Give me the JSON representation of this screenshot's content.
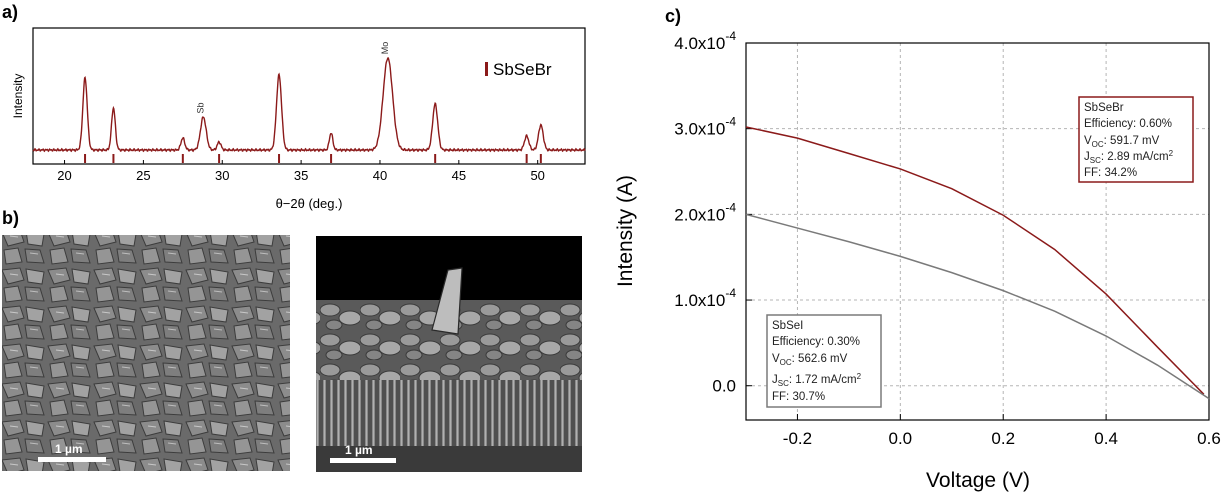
{
  "panel_labels": {
    "a": "a)",
    "b": "b)",
    "c": "c)"
  },
  "xrd": {
    "xlabel": "θ−2θ (deg.)",
    "ylabel": "Intensity",
    "legend": "SbSeBr",
    "xlim": [
      18,
      53
    ],
    "x_ticks": [
      "20",
      "25",
      "30",
      "35",
      "40",
      "45",
      "50"
    ],
    "peak_labels": [
      {
        "text": "Sb",
        "x": 28.8
      },
      {
        "text": "Mo",
        "x": 40.5
      }
    ],
    "reference_peaks": [
      21.3,
      23.1,
      27.5,
      29.8,
      33.6,
      36.9,
      43.5,
      49.3,
      50.2
    ],
    "color": "#8b1a1a"
  },
  "sem": {
    "top_view": {
      "scale_bar": "1 µm"
    },
    "cross_section": {
      "scale_bar": "1 µm"
    }
  },
  "chart_data": {
    "type": "line",
    "xlabel": "Voltage (V)",
    "ylabel": "Intensity (A)",
    "xlim": [
      -0.3,
      0.6
    ],
    "ylim": [
      -4e-05,
      0.0004
    ],
    "x_ticks": [
      "-0.2",
      "0.0",
      "0.2",
      "0.4",
      "0.6"
    ],
    "y_ticks": [
      {
        "mantissa": "0.0",
        "exp": ""
      },
      {
        "mantissa": "1.0x10",
        "exp": "-4"
      },
      {
        "mantissa": "2.0x10",
        "exp": "-4"
      },
      {
        "mantissa": "3.0x10",
        "exp": "-4"
      },
      {
        "mantissa": "4.0x10",
        "exp": "-4"
      }
    ],
    "grid": true,
    "series": [
      {
        "name": "SbSeBr",
        "color": "#8b1a1a",
        "x": [
          -0.3,
          -0.2,
          -0.1,
          0.0,
          0.1,
          0.2,
          0.3,
          0.4,
          0.5,
          0.59
        ],
        "y": [
          0.000302,
          0.000289,
          0.000271,
          0.000253,
          0.00023,
          0.000199,
          0.000159,
          0.000107,
          4.5e-05,
          -1e-05
        ]
      },
      {
        "name": "SbSeI",
        "color": "#7a7a7a",
        "x": [
          -0.3,
          -0.2,
          -0.1,
          0.0,
          0.1,
          0.2,
          0.3,
          0.4,
          0.5,
          0.6
        ],
        "y": [
          0.0002,
          0.000184,
          0.000168,
          0.000151,
          0.000132,
          0.000111,
          8.7e-05,
          5.8e-05,
          2.4e-05,
          -1.5e-05
        ]
      }
    ],
    "annotations": [
      {
        "series": "SbSeBr",
        "title": "SbSeBr",
        "efficiency": "Efficiency: 0.60%",
        "voc_prefix": "V",
        "voc_sub": "OC",
        "voc_value": ": 591.7 mV",
        "jsc_prefix": "J",
        "jsc_sub": "SC",
        "jsc_value": ": 2.89 mA/cm",
        "jsc_sup": "2",
        "ff": "FF: 34.2%"
      },
      {
        "series": "SbSeI",
        "title": "SbSeI",
        "efficiency": "Efficiency: 0.30%",
        "voc_prefix": "V",
        "voc_sub": "OC",
        "voc_value": ": 562.6 mV",
        "jsc_prefix": "J",
        "jsc_sub": "SC",
        "jsc_value": ": 1.72 mA/cm",
        "jsc_sup": "2",
        "ff": "FF: 30.7%"
      }
    ]
  }
}
